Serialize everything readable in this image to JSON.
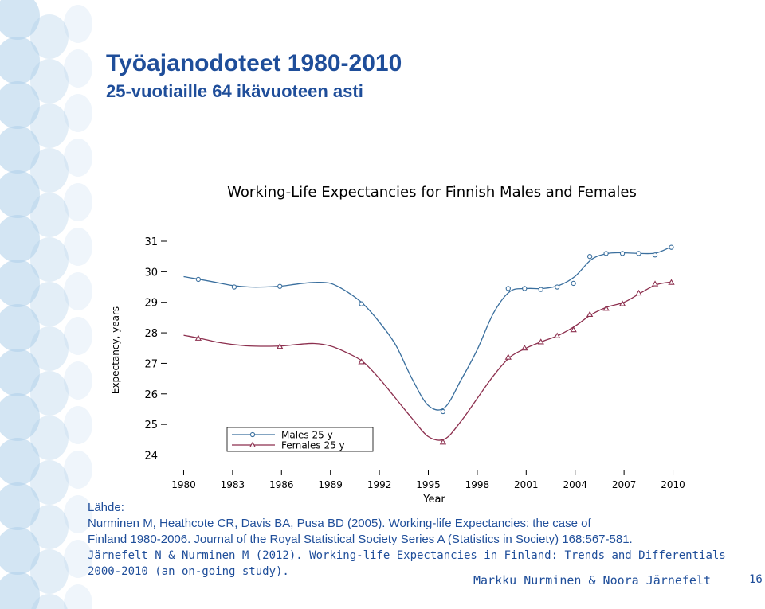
{
  "slide": {
    "title": "Työajanodoteet 1980-2010",
    "subtitle": "25-vuotiaille 64 ikävuoteen asti",
    "source_heading": "Lähde:",
    "source_lines": [
      "Nurminen M, Heathcote CR, Davis BA, Pusa BD (2005). Working-life Expectancies: the case of",
      "Finland 1980-2006. Journal of the Royal Statistical Society Series A (Statistics in Society) 168:567-581.",
      "Järnefelt N & Nurminen M (2012). Working-life Expectancies in Finland: Trends and Differentials",
      "2000-2010 (an on-going study)."
    ],
    "authors": "Markku Nurminen & Noora Järnefelt",
    "page_number": "16",
    "colors": {
      "title": "#1f4e9a",
      "deco": "#aecfe9"
    }
  },
  "chart_data": {
    "type": "line",
    "title": "Working-Life Expectancies for Finnish Males and Females",
    "xlabel": "Year",
    "ylabel": "Expectancy, years",
    "xlim": [
      1979,
      2011
    ],
    "ylim": [
      23.7,
      31.6
    ],
    "xticks": [
      1980,
      1983,
      1986,
      1989,
      1992,
      1995,
      1998,
      2001,
      2004,
      2007,
      2010
    ],
    "yticks": [
      24,
      25,
      26,
      27,
      28,
      29,
      30,
      31
    ],
    "legend_position": "lower-left",
    "grid": false,
    "series": [
      {
        "name": "Males 25 y",
        "color": "#3a6f9e",
        "marker": "circle",
        "points": [
          [
            1980.9,
            29.75
          ],
          [
            1983.1,
            29.5
          ],
          [
            1985.9,
            29.52
          ],
          [
            1990.9,
            28.95
          ],
          [
            1995.9,
            25.42
          ],
          [
            1999.9,
            29.45
          ],
          [
            2000.9,
            29.45
          ],
          [
            2001.9,
            29.42
          ],
          [
            2002.9,
            29.5
          ],
          [
            2003.9,
            29.62
          ],
          [
            2004.9,
            30.5
          ],
          [
            2005.9,
            30.6
          ],
          [
            2006.9,
            30.6
          ],
          [
            2007.9,
            30.6
          ],
          [
            2008.9,
            30.55
          ],
          [
            2009.9,
            30.8
          ]
        ],
        "curve": [
          [
            1980,
            29.84
          ],
          [
            1981,
            29.75
          ],
          [
            1982,
            29.65
          ],
          [
            1983,
            29.55
          ],
          [
            1984,
            29.5
          ],
          [
            1985,
            29.5
          ],
          [
            1986,
            29.53
          ],
          [
            1987,
            29.6
          ],
          [
            1988,
            29.65
          ],
          [
            1989,
            29.62
          ],
          [
            1990,
            29.35
          ],
          [
            1991,
            28.95
          ],
          [
            1992,
            28.35
          ],
          [
            1993,
            27.6
          ],
          [
            1994,
            26.5
          ],
          [
            1995,
            25.62
          ],
          [
            1996,
            25.55
          ],
          [
            1997,
            26.45
          ],
          [
            1998,
            27.45
          ],
          [
            1999,
            28.65
          ],
          [
            2000,
            29.35
          ],
          [
            2001,
            29.45
          ],
          [
            2002,
            29.45
          ],
          [
            2003,
            29.55
          ],
          [
            2004,
            29.85
          ],
          [
            2005,
            30.4
          ],
          [
            2006,
            30.6
          ],
          [
            2007,
            30.62
          ],
          [
            2008,
            30.6
          ],
          [
            2009,
            30.62
          ],
          [
            2010,
            30.85
          ]
        ]
      },
      {
        "name": "Females 25 y",
        "color": "#8c2f4e",
        "marker": "triangle",
        "points": [
          [
            1980.9,
            27.82
          ],
          [
            1985.9,
            27.55
          ],
          [
            1990.9,
            27.05
          ],
          [
            1995.9,
            24.42
          ],
          [
            1999.9,
            27.2
          ],
          [
            2000.9,
            27.5
          ],
          [
            2001.9,
            27.7
          ],
          [
            2002.9,
            27.9
          ],
          [
            2003.9,
            28.1
          ],
          [
            2004.9,
            28.6
          ],
          [
            2005.9,
            28.8
          ],
          [
            2006.9,
            28.95
          ],
          [
            2007.9,
            29.3
          ],
          [
            2008.9,
            29.6
          ],
          [
            2009.9,
            29.65
          ]
        ],
        "curve": [
          [
            1980,
            27.92
          ],
          [
            1981,
            27.82
          ],
          [
            1982,
            27.7
          ],
          [
            1983,
            27.62
          ],
          [
            1984,
            27.57
          ],
          [
            1985,
            27.56
          ],
          [
            1986,
            27.57
          ],
          [
            1987,
            27.62
          ],
          [
            1988,
            27.65
          ],
          [
            1989,
            27.57
          ],
          [
            1990,
            27.35
          ],
          [
            1991,
            27.05
          ],
          [
            1992,
            26.5
          ],
          [
            1993,
            25.85
          ],
          [
            1994,
            25.2
          ],
          [
            1995,
            24.6
          ],
          [
            1996,
            24.52
          ],
          [
            1997,
            25.1
          ],
          [
            1998,
            25.85
          ],
          [
            1999,
            26.6
          ],
          [
            2000,
            27.2
          ],
          [
            2001,
            27.5
          ],
          [
            2002,
            27.72
          ],
          [
            2003,
            27.92
          ],
          [
            2004,
            28.22
          ],
          [
            2005,
            28.6
          ],
          [
            2006,
            28.85
          ],
          [
            2007,
            29.0
          ],
          [
            2008,
            29.3
          ],
          [
            2009,
            29.58
          ],
          [
            2010,
            29.67
          ]
        ]
      }
    ]
  }
}
